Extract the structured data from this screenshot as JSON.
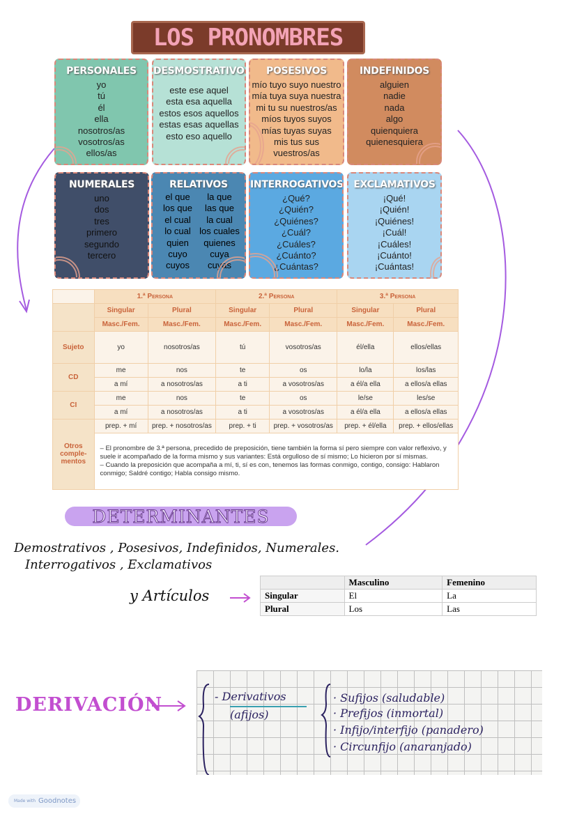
{
  "title": "LOS PRONOMBRES",
  "cards": [
    {
      "name": "PERSONALES",
      "items": [
        "yo",
        "tú",
        "él",
        "ella",
        "nosotros/as",
        "vosotros/as",
        "ellos/as"
      ],
      "color": "#80c6ae"
    },
    {
      "name": "DESMOSTRATIVOS",
      "items": [
        "este ese aquel",
        "esta esa aquella",
        "estos esos aquellos",
        "estas esas aquellas",
        "esto eso aquello"
      ],
      "color": "#b6e1d6"
    },
    {
      "name": "POSESIVOS",
      "items": [
        "mío tuyo suyo nuestro",
        "mía tuya suya nuestra",
        "mi tu su nuestros/as",
        "míos tuyos suyos",
        "mías tuyas suyas",
        "mis tus sus",
        "vuestros/as"
      ],
      "color": "#f1ba8b"
    },
    {
      "name": "INDEFINIDOS",
      "items": [
        "alguien",
        "nadie",
        "nada",
        "algo",
        "quienquiera",
        "quienesquiera"
      ],
      "color": "#d18b5f"
    },
    {
      "name": "NUMERALES",
      "items": [
        "uno",
        "dos",
        "tres",
        "primero",
        "segundo",
        "tercero"
      ],
      "color": "#404e69"
    },
    {
      "name": "RELATIVOS",
      "items": [
        "el que",
        "la que",
        "los que",
        "las que",
        "el cual",
        "la cual",
        "lo cual",
        "los cuales",
        "quien",
        "quienes",
        "cuyo",
        "cuya",
        "cuyos",
        "cuyas"
      ],
      "color": "#4b87b2"
    },
    {
      "name": "INTERROGATIVOS",
      "items": [
        "¿Qué?",
        "¿Quién?",
        "¿Quiénes?",
        "¿Cuál?",
        "¿Cuáles?",
        "¿Cuánto?",
        "¿Cuántas?"
      ],
      "color": "#5ba9e1"
    },
    {
      "name": "EXCLAMATIVOS",
      "items": [
        "¡Qué!",
        "¡Quién!",
        "¡Quiénes!",
        "¡Cuál!",
        "¡Cuáles!",
        "¡Cuánto!",
        "¡Cuántas!"
      ],
      "color": "#a9d5f1"
    }
  ],
  "pronoun_table": {
    "persons": [
      "1.ª Persona",
      "2.ª Persona",
      "3.ª Persona"
    ],
    "number": [
      "Singular",
      "Plural",
      "Singular",
      "Plural",
      "Singular",
      "Plural"
    ],
    "gender": [
      "Masc./Fem.",
      "Masc./Fem.",
      "Masc./Fem.",
      "Masc./Fem.",
      "Masc./Fem.",
      "Masc./Fem."
    ],
    "rows": [
      {
        "label": "Sujeto",
        "cells": [
          [
            "yo",
            "nosotros/as",
            "tú",
            "vosotros/as",
            "él/ella",
            "ellos/ellas"
          ]
        ]
      },
      {
        "label": "CD",
        "cells": [
          [
            "me",
            "nos",
            "te",
            "os",
            "lo/la",
            "los/las"
          ],
          [
            "a mí",
            "a nosotros/as",
            "a ti",
            "a vosotros/as",
            "a él/a ella",
            "a ellos/a ellas"
          ]
        ]
      },
      {
        "label": "CI",
        "cells": [
          [
            "me",
            "nos",
            "te",
            "os",
            "le/se",
            "les/se"
          ],
          [
            "a mí",
            "a nosotros/as",
            "a ti",
            "a vosotros/as",
            "a él/a ella",
            "a ellos/a ellas"
          ]
        ]
      },
      {
        "label": "Otros comple-mentos",
        "cells": [
          [
            "prep. + mí",
            "prep. + nosotros/as",
            "prep. + ti",
            "prep. + vosotros/as",
            "prep. + él/ella",
            "prep. + ellos/ellas"
          ]
        ]
      }
    ],
    "notes": [
      "– El pronombre de 3.ª persona, precedido de preposición, tiene también la forma sí pero siempre con valor reflexivo, y suele ir acompañado de la forma mismo y sus variantes: Está orgulloso de sí mismo; Lo hicieron por sí mismas.",
      "– Cuando la preposición que acompaña a mí, ti, sí es con, tenemos las formas conmigo, contigo, consigo: Hablaron conmigo; Saldré contigo; Habla consigo mismo."
    ]
  },
  "determinantes": {
    "title": "DETERMINANTES",
    "line1": "Demostrativos , Posesivos, Indefinidos, Numerales.",
    "line2": "Interrogativos , Exclamativos",
    "line3": "y  Artículos",
    "articles": {
      "headers": [
        "",
        "Masculino",
        "Femenino"
      ],
      "rows": [
        [
          "Singular",
          "El",
          "La"
        ],
        [
          "Plural",
          "Los",
          "Las"
        ]
      ]
    }
  },
  "derivacion": {
    "title": "DERIVACIÓN",
    "left": "- Derivativos",
    "left_sub": "(afijos)",
    "items": [
      "· Sufijos (saludable)",
      "· Prefijos (inmortal)",
      "· Infijo/interfijo (panadero)",
      "· Circunfijo (anaranjado)"
    ]
  },
  "badge": {
    "prefix": "Made with",
    "brand": "Goodnotes"
  },
  "colors": {
    "arrow": "#a45ae0",
    "accent": "#c24ed0"
  }
}
